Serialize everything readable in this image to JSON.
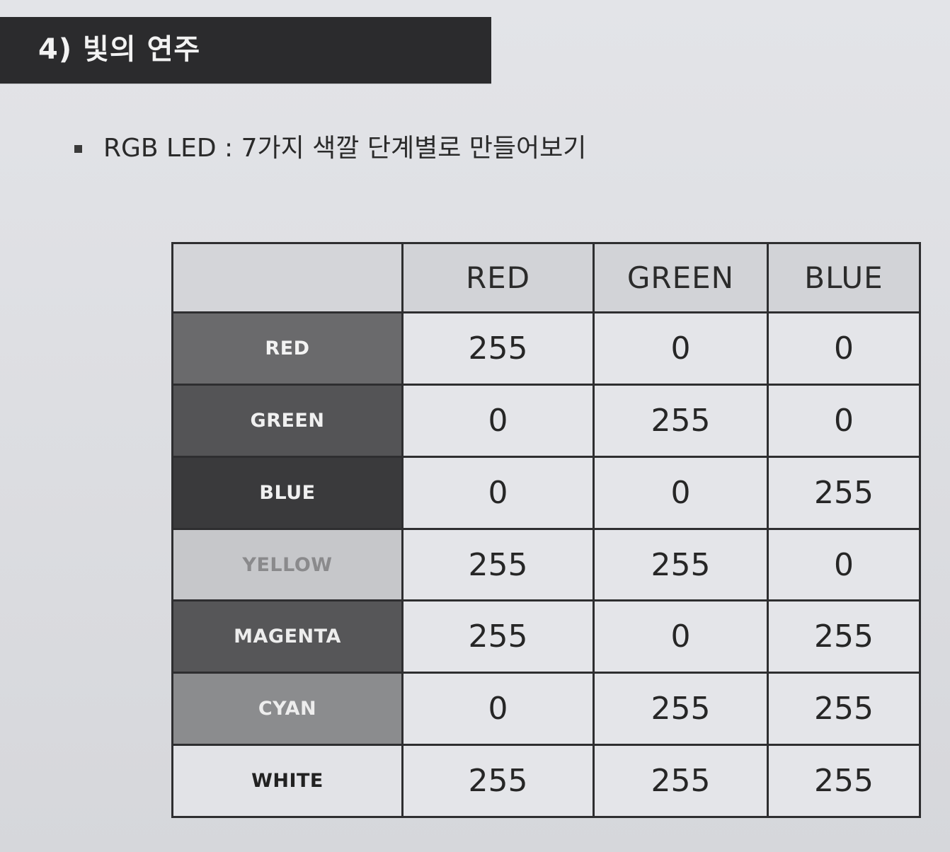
{
  "header": {
    "title": "4) 빛의 연주"
  },
  "bullet": {
    "icon": "square-bullet-icon",
    "text": "RGB LED : 7가지 색깔 단계별로 만들어보기"
  },
  "table": {
    "columns": [
      "",
      "RED",
      "GREEN",
      "BLUE"
    ],
    "rows": [
      {
        "label": "RED",
        "values": [
          "255",
          "0",
          "0"
        ],
        "swatch": "#6a6a6c"
      },
      {
        "label": "GREEN",
        "values": [
          "0",
          "255",
          "0"
        ],
        "swatch": "#545456"
      },
      {
        "label": "BLUE",
        "values": [
          "0",
          "0",
          "255"
        ],
        "swatch": "#3a3a3c"
      },
      {
        "label": "YELLOW",
        "values": [
          "255",
          "255",
          "0"
        ],
        "swatch": "#c6c7ca"
      },
      {
        "label": "MAGENTA",
        "values": [
          "255",
          "0",
          "255"
        ],
        "swatch": "#565658"
      },
      {
        "label": "CYAN",
        "values": [
          "0",
          "255",
          "255"
        ],
        "swatch": "#8b8c8e"
      },
      {
        "label": "WHITE",
        "values": [
          "255",
          "255",
          "255"
        ],
        "swatch": "#e2e3e7"
      }
    ]
  }
}
